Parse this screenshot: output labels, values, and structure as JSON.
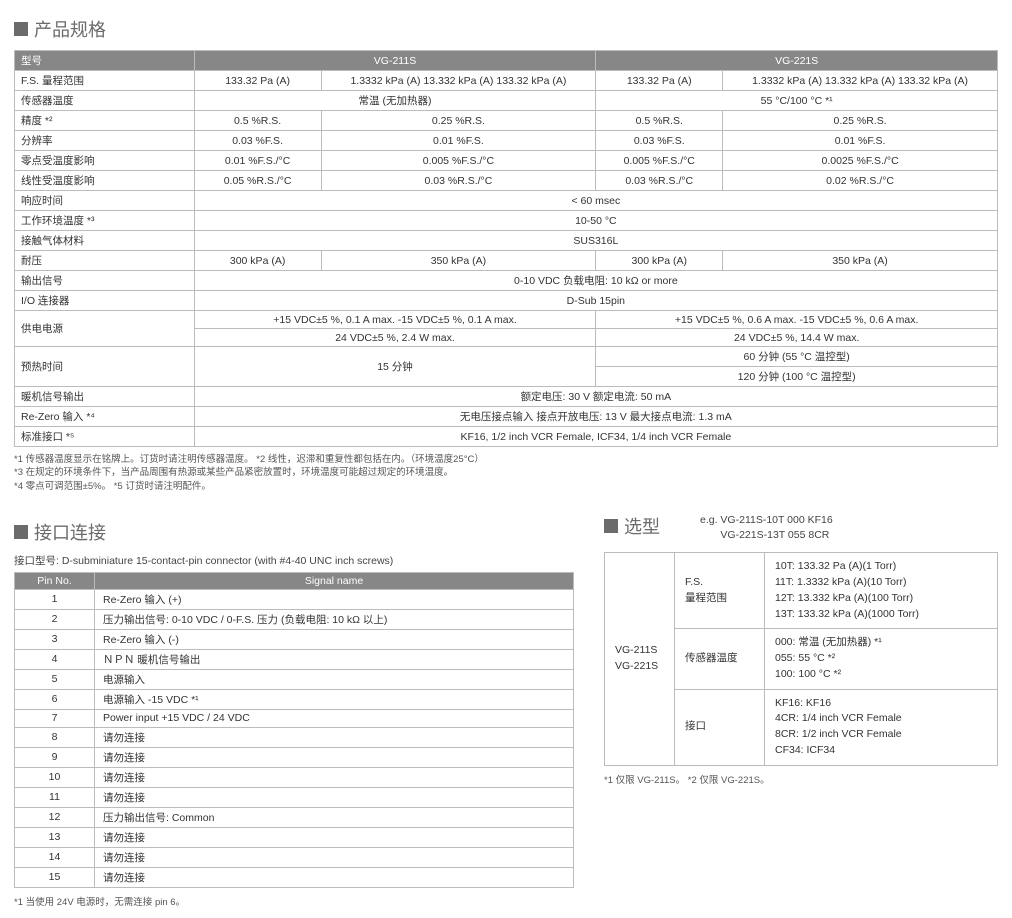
{
  "spec_section_title": "产品规格",
  "spec_headers": {
    "model": "型号",
    "m1": "VG-211S",
    "m2": "VG-221S"
  },
  "spec_rows": {
    "fs_label": "F.S. 量程范围",
    "fs_a": "133.32 Pa (A)",
    "fs_b": "1.3332 kPa (A)   13.332 kPa (A)   133.32 kPa (A)",
    "fs_c": "133.32 Pa (A)",
    "fs_d": "1.3332 kPa (A)   13.332 kPa (A)   133.32 kPa (A)",
    "sensortemp_label": "传感器温度",
    "sensortemp_a": "常温 (无加热器)",
    "sensortemp_b": "55 °C/100 °C *¹",
    "accuracy_label": "精度 *²",
    "accuracy_a": "0.5 %R.S.",
    "accuracy_b": "0.25 %R.S.",
    "accuracy_c": "0.5 %R.S.",
    "accuracy_d": "0.25 %R.S.",
    "res_label": "分辨率",
    "res_a": "0.03 %F.S.",
    "res_b": "0.01 %F.S.",
    "res_c": "0.03 %F.S.",
    "res_d": "0.01 %F.S.",
    "zero_label": "零点受温度影响",
    "zero_a": "0.01 %F.S./°C",
    "zero_b": "0.005 %F.S./°C",
    "zero_c": "0.005 %F.S./°C",
    "zero_d": "0.0025 %F.S./°C",
    "lin_label": "线性受温度影响",
    "lin_a": "0.05 %R.S./°C",
    "lin_b": "0.03 %R.S./°C",
    "lin_c": "0.03 %R.S./°C",
    "lin_d": "0.02 %R.S./°C",
    "resp_label": "响应时间",
    "resp_val": "< 60 msec",
    "env_label": "工作环境温度 *³",
    "env_val": "10-50 °C",
    "mat_label": "接触气体材料",
    "mat_val": "SUS316L",
    "press_label": "耐压",
    "press_a": "300 kPa (A)",
    "press_b": "350 kPa (A)",
    "press_c": "300 kPa (A)",
    "press_d": "350 kPa (A)",
    "out_label": "输出信号",
    "out_val": "0-10 VDC  负载电阻: 10 kΩ or more",
    "io_label": "I/O 连接器",
    "io_val": "D-Sub 15pin",
    "power_label": "供电电源",
    "power_a": "+15 VDC±5 %, 0.1 A max.  -15 VDC±5 %, 0.1 A max.",
    "power_b": "+15 VDC±5 %, 0.6 A max.  -15 VDC±5 %, 0.6 A max.",
    "power_c": "24 VDC±5 %, 2.4 W max.",
    "power_d": "24 VDC±5 %, 14.4 W max.",
    "warm_label": "预热时间",
    "warm_a": "15 分钟",
    "warm_b1": "60 分钟 (55 °C 温控型)",
    "warm_b2": "120 分钟 (100 °C 温控型)",
    "heat_label": "暖机信号输出",
    "heat_val": "额定电压: 30 V   额定电流: 50 mA",
    "rezero_label": "Re-Zero 输入 *⁴",
    "rezero_val": "无电压接点输入  接点开放电压: 13 V   最大接点电流: 1.3 mA",
    "conn_label": "标准接口 *⁵",
    "conn_val": "KF16, 1/2 inch VCR Female, ICF34, 1/4 inch VCR Female"
  },
  "spec_notes_l1": "*1 传感器温度显示在铭牌上。订货时请注明传感器温度。   *2 线性，迟滞和重复性都包括在内。（环境温度25°C）",
  "spec_notes_l2": "*3 在规定的环境条件下，当产品周围有热源或某些产品紧密放置时，环境温度可能超过规定的环境温度。",
  "spec_notes_l3": "*4 零点可调范围±5%。   *5 订货时请注明配件。",
  "conn_section_title": "接口连接",
  "conn_sub": "接口型号: D-subminiature 15-contact-pin connector (with #4-40 UNC inch screws)",
  "pin_header_no": "Pin No.",
  "pin_header_sig": "Signal name",
  "pins": [
    {
      "n": "1",
      "s": "Re-Zero 输入 (+)"
    },
    {
      "n": "2",
      "s": "压力输出信号: 0-10 VDC / 0-F.S. 压力 (负载电阻: 10 kΩ 以上)"
    },
    {
      "n": "3",
      "s": "Re-Zero 输入 (-)"
    },
    {
      "n": "4",
      "s": "ＮＰＮ 暖机信号输出"
    },
    {
      "n": "5",
      "s": "电源输入"
    },
    {
      "n": "6",
      "s": "电源输入 -15 VDC *¹"
    },
    {
      "n": "7",
      "s": "Power input +15 VDC / 24 VDC"
    },
    {
      "n": "8",
      "s": "请勿连接"
    },
    {
      "n": "9",
      "s": "请勿连接"
    },
    {
      "n": "10",
      "s": "请勿连接"
    },
    {
      "n": "11",
      "s": "请勿连接"
    },
    {
      "n": "12",
      "s": "压力输出信号: Common"
    },
    {
      "n": "13",
      "s": "请勿连接"
    },
    {
      "n": "14",
      "s": "请勿连接"
    },
    {
      "n": "15",
      "s": "请勿连接"
    }
  ],
  "conn_footnote": "*1 当使用 24V 电源时，无需连接 pin 6。",
  "sel_section_title": "选型",
  "sel_eg1": "e.g. VG-211S-10T 000 KF16",
  "sel_eg2": "       VG-221S-13T 055 8CR",
  "sel_models": "VG-211S\nVG-221S",
  "sel_row1_label": "F.S.\n量程范围",
  "sel_row1_val": "10T: 133.32 Pa (A)(1 Torr)\n11T: 1.3332 kPa (A)(10 Torr)\n12T: 13.332 kPa (A)(100 Torr)\n13T: 133.32 kPa (A)(1000 Torr)",
  "sel_row2_label": "传感器温度",
  "sel_row2_val": "000:  常温 (无加热器) *¹\n055:  55 °C  *²\n100: 100 °C  *²",
  "sel_row3_label": "接口",
  "sel_row3_val": "KF16: KF16\n4CR: 1/4 inch VCR Female\n8CR: 1/2 inch VCR Female\nCF34: ICF34",
  "sel_footnote": "*1  仅限 VG-211S。   *2  仅限 VG-221S。"
}
